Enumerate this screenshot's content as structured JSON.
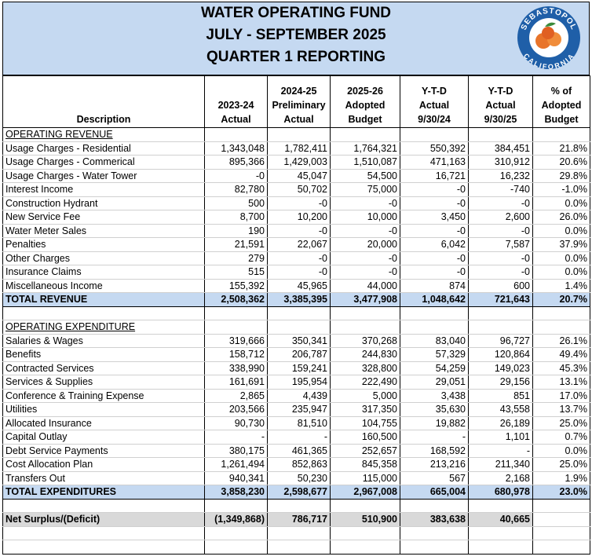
{
  "header": {
    "title": [
      "WATER OPERATING FUND",
      "JULY - SEPTEMBER 2025",
      "QUARTER 1 REPORTING"
    ],
    "logo": {
      "top": "SEBASTOPOL",
      "bottom": "CALIFORNIA"
    }
  },
  "table": {
    "columns": [
      [
        "Description"
      ],
      [
        "2023-24",
        "Actual"
      ],
      [
        "2024-25",
        "Preliminary",
        "Actual"
      ],
      [
        "2025-26",
        "Adopted",
        "Budget"
      ],
      [
        "Y-T-D",
        "Actual",
        "9/30/24"
      ],
      [
        "Y-T-D",
        "Actual",
        "9/30/25"
      ],
      [
        "% of",
        "Adopted",
        "Budget"
      ]
    ],
    "revenue": {
      "heading": "OPERATING REVENUE",
      "rows": [
        {
          "label": "Usage Charges - Residential",
          "values": [
            "1,343,048",
            "1,782,411",
            "1,764,321",
            "550,392",
            "384,451",
            "21.8%"
          ]
        },
        {
          "label": "Usage Charges - Commerical",
          "values": [
            "895,366",
            "1,429,003",
            "1,510,087",
            "471,163",
            "310,912",
            "20.6%"
          ]
        },
        {
          "label": "Usage Charges - Water Tower",
          "values": [
            "-0",
            "45,047",
            "54,500",
            "16,721",
            "16,232",
            "29.8%"
          ]
        },
        {
          "label": "Interest Income",
          "values": [
            "82,780",
            "50,702",
            "75,000",
            "-0",
            "-740",
            "-1.0%"
          ]
        },
        {
          "label": "Construction Hydrant",
          "values": [
            "500",
            "-0",
            "-0",
            "-0",
            "-0",
            "0.0%"
          ]
        },
        {
          "label": "New Service Fee",
          "values": [
            "8,700",
            "10,200",
            "10,000",
            "3,450",
            "2,600",
            "26.0%"
          ]
        },
        {
          "label": "Water Meter Sales",
          "values": [
            "190",
            "-0",
            "-0",
            "-0",
            "-0",
            "0.0%"
          ]
        },
        {
          "label": "Penalties",
          "values": [
            "21,591",
            "22,067",
            "20,000",
            "6,042",
            "7,587",
            "37.9%"
          ]
        },
        {
          "label": "Other Charges",
          "values": [
            "279",
            "-0",
            "-0",
            "-0",
            "-0",
            "0.0%"
          ]
        },
        {
          "label": "Insurance Claims",
          "values": [
            "515",
            "-0",
            "-0",
            "-0",
            "-0",
            "0.0%"
          ]
        },
        {
          "label": "Miscellaneous Income",
          "values": [
            "155,392",
            "45,965",
            "44,000",
            "874",
            "600",
            "1.4%"
          ]
        }
      ],
      "total": {
        "label": "TOTAL REVENUE",
        "values": [
          "2,508,362",
          "3,385,395",
          "3,477,908",
          "1,048,642",
          "721,643",
          "20.7%"
        ]
      }
    },
    "expenditure": {
      "heading": "OPERATING EXPENDITURE",
      "rows": [
        {
          "label": "Salaries & Wages",
          "values": [
            "319,666",
            "350,341",
            "370,268",
            "83,040",
            "96,727",
            "26.1%"
          ]
        },
        {
          "label": "Benefits",
          "values": [
            "158,712",
            "206,787",
            "244,830",
            "57,329",
            "120,864",
            "49.4%"
          ]
        },
        {
          "label": "Contracted Services",
          "values": [
            "338,990",
            "159,241",
            "328,800",
            "54,259",
            "149,023",
            "45.3%"
          ]
        },
        {
          "label": "Services & Supplies",
          "values": [
            "161,691",
            "195,954",
            "222,490",
            "29,051",
            "29,156",
            "13.1%"
          ]
        },
        {
          "label": "Conference & Training Expense",
          "values": [
            "2,865",
            "4,439",
            "5,000",
            "3,438",
            "851",
            "17.0%"
          ]
        },
        {
          "label": "Utilities",
          "values": [
            "203,566",
            "235,947",
            "317,350",
            "35,630",
            "43,558",
            "13.7%"
          ]
        },
        {
          "label": "Allocated Insurance",
          "values": [
            "90,730",
            "81,510",
            "104,755",
            "19,882",
            "26,189",
            "25.0%"
          ]
        },
        {
          "label": "Capital Outlay",
          "values": [
            "-",
            "-",
            "160,500",
            "-",
            "1,101",
            "0.7%"
          ]
        },
        {
          "label": "Debt Service Payments",
          "values": [
            "380,175",
            "461,365",
            "252,657",
            "168,592",
            "-",
            "0.0%"
          ]
        },
        {
          "label": "Cost Allocation Plan",
          "values": [
            "1,261,494",
            "852,863",
            "845,358",
            "213,216",
            "211,340",
            "25.0%"
          ]
        },
        {
          "label": "Transfers Out",
          "values": [
            "940,341",
            "50,230",
            "115,000",
            "567",
            "2,168",
            "1.9%"
          ]
        }
      ],
      "total": {
        "label": "TOTAL EXPENDITURES",
        "values": [
          "3,858,230",
          "2,598,677",
          "2,967,008",
          "665,004",
          "680,978",
          "23.0%"
        ]
      }
    },
    "net": {
      "label": "Net Surplus/(Deficit)",
      "values": [
        "(1,349,868)",
        "786,717",
        "510,900",
        "383,638",
        "40,665"
      ]
    }
  }
}
